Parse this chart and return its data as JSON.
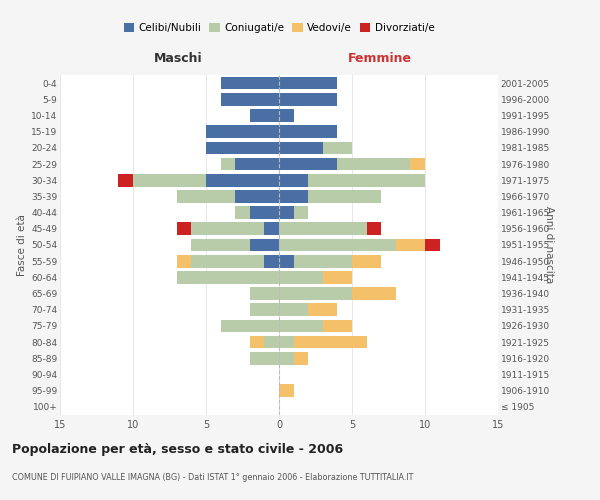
{
  "age_groups": [
    "100+",
    "95-99",
    "90-94",
    "85-89",
    "80-84",
    "75-79",
    "70-74",
    "65-69",
    "60-64",
    "55-59",
    "50-54",
    "45-49",
    "40-44",
    "35-39",
    "30-34",
    "25-29",
    "20-24",
    "15-19",
    "10-14",
    "5-9",
    "0-4"
  ],
  "birth_years": [
    "≤ 1905",
    "1906-1910",
    "1911-1915",
    "1916-1920",
    "1921-1925",
    "1926-1930",
    "1931-1935",
    "1936-1940",
    "1941-1945",
    "1946-1950",
    "1951-1955",
    "1956-1960",
    "1961-1965",
    "1966-1970",
    "1971-1975",
    "1976-1980",
    "1981-1985",
    "1986-1990",
    "1991-1995",
    "1996-2000",
    "2001-2005"
  ],
  "males": {
    "celibi": [
      0,
      0,
      0,
      0,
      0,
      0,
      0,
      0,
      0,
      1,
      2,
      1,
      2,
      3,
      5,
      3,
      5,
      5,
      2,
      4,
      4
    ],
    "coniugati": [
      0,
      0,
      0,
      2,
      1,
      4,
      2,
      2,
      7,
      5,
      4,
      5,
      1,
      4,
      5,
      1,
      0,
      0,
      0,
      0,
      0
    ],
    "vedovi": [
      0,
      0,
      0,
      0,
      1,
      0,
      0,
      0,
      0,
      1,
      0,
      0,
      0,
      0,
      0,
      0,
      0,
      0,
      0,
      0,
      0
    ],
    "divorziati": [
      0,
      0,
      0,
      0,
      0,
      0,
      0,
      0,
      0,
      0,
      0,
      1,
      0,
      0,
      1,
      0,
      0,
      0,
      0,
      0,
      0
    ]
  },
  "females": {
    "nubili": [
      0,
      0,
      0,
      0,
      0,
      0,
      0,
      0,
      0,
      1,
      0,
      0,
      1,
      2,
      2,
      4,
      3,
      4,
      1,
      4,
      4
    ],
    "coniugate": [
      0,
      0,
      0,
      1,
      1,
      3,
      2,
      5,
      3,
      4,
      8,
      6,
      1,
      5,
      8,
      5,
      2,
      0,
      0,
      0,
      0
    ],
    "vedove": [
      0,
      1,
      0,
      1,
      5,
      2,
      2,
      3,
      2,
      2,
      2,
      0,
      0,
      0,
      0,
      1,
      0,
      0,
      0,
      0,
      0
    ],
    "divorziate": [
      0,
      0,
      0,
      0,
      0,
      0,
      0,
      0,
      0,
      0,
      1,
      1,
      0,
      0,
      0,
      0,
      0,
      0,
      0,
      0,
      0
    ]
  },
  "colors": {
    "celibi_nubili": "#4a6fa5",
    "coniugati": "#b8ccaa",
    "vedovi": "#f5c06a",
    "divorziati": "#cc2222"
  },
  "title": "Popolazione per età, sesso e stato civile - 2006",
  "subtitle": "COMUNE DI FUIPIANO VALLE IMAGNA (BG) - Dati ISTAT 1° gennaio 2006 - Elaborazione TUTTITALIA.IT",
  "xlabel_left": "Maschi",
  "xlabel_right": "Femmine",
  "ylabel_left": "Fasce di età",
  "ylabel_right": "Anni di nascita",
  "xlim": 15,
  "bg_color": "#f5f5f5",
  "plot_bg_color": "#ffffff"
}
